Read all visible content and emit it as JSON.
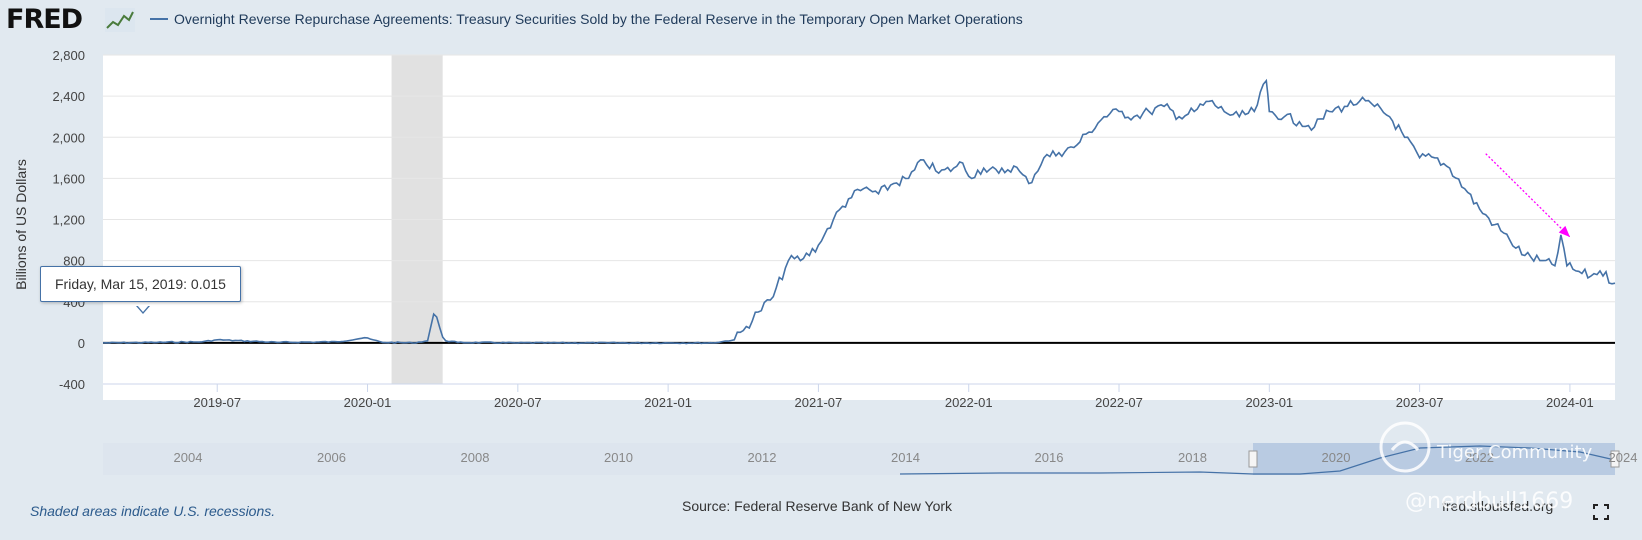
{
  "header": {
    "logo_text": "FRED",
    "series_title": "Overnight Reverse Repurchase Agreements: Treasury Securities Sold by the Federal Reserve in the Temporary Open Market Operations"
  },
  "tooltip": {
    "date_label": "Friday, Mar 15, 2019:",
    "value": "0.015"
  },
  "footer": {
    "recession_note": "Shaded areas indicate U.S. recessions.",
    "source": "Source: Federal Reserve Bank of New York",
    "url": "fred.stlouisfed.org"
  },
  "watermark": {
    "brand": "Tiger Community",
    "handle": "@nerdbull1669"
  },
  "colors": {
    "series": "#4572a7",
    "recession": "#e1e1e1",
    "arrow": "#ff00ff",
    "zero_line": "#000000",
    "navigator_range": "#b0c4de"
  },
  "chart_data": {
    "type": "line",
    "title": "Overnight Reverse Repurchase Agreements: Treasury Securities Sold by the Federal Reserve in the Temporary Open Market Operations",
    "ylabel": "Billions of US Dollars",
    "xlabel": "",
    "ylim": [
      -400,
      2800
    ],
    "yticks": [
      -400,
      0,
      400,
      800,
      1200,
      1600,
      2000,
      2400,
      2800
    ],
    "ytick_labels": [
      "-400",
      "0",
      "400",
      "800",
      "1,200",
      "1,600",
      "2,000",
      "2,400",
      "2,800"
    ],
    "xlim": [
      2019.12,
      2024.15
    ],
    "xticks": [
      2019.5,
      2020.0,
      2020.5,
      2021.0,
      2021.5,
      2022.0,
      2022.5,
      2023.0,
      2023.5,
      2024.0
    ],
    "xtick_labels": [
      "2019-07",
      "2020-01",
      "2020-07",
      "2021-01",
      "2021-07",
      "2022-01",
      "2022-07",
      "2023-01",
      "2023-07",
      "2024-01"
    ],
    "recession": [
      2020.08,
      2020.25
    ],
    "series": [
      {
        "name": "Overnight Reverse Repurchase Agreements",
        "x": [
          2019.12,
          2019.3,
          2019.45,
          2019.5,
          2019.7,
          2019.9,
          2019.99,
          2020.05,
          2020.15,
          2020.2,
          2020.22,
          2020.24,
          2020.26,
          2020.3,
          2020.5,
          2020.8,
          2021.0,
          2021.15,
          2021.22,
          2021.25,
          2021.3,
          2021.35,
          2021.4,
          2021.45,
          2021.5,
          2021.52,
          2021.55,
          2021.6,
          2021.65,
          2021.7,
          2021.75,
          2021.8,
          2021.85,
          2021.9,
          2021.95,
          2021.98,
          2022.0,
          2022.05,
          2022.1,
          2022.15,
          2022.2,
          2022.25,
          2022.3,
          2022.35,
          2022.4,
          2022.45,
          2022.5,
          2022.55,
          2022.6,
          2022.65,
          2022.7,
          2022.75,
          2022.8,
          2022.85,
          2022.9,
          2022.95,
          2022.99,
          2023.0,
          2023.05,
          2023.1,
          2023.15,
          2023.2,
          2023.25,
          2023.3,
          2023.35,
          2023.4,
          2023.45,
          2023.5,
          2023.55,
          2023.6,
          2023.65,
          2023.7,
          2023.75,
          2023.8,
          2023.85,
          2023.9,
          2023.95,
          2023.97,
          2023.99,
          2024.02,
          2024.07,
          2024.1,
          2024.15
        ],
        "values": [
          0,
          5,
          10,
          30,
          5,
          10,
          50,
          5,
          0,
          20,
          280,
          150,
          20,
          5,
          0,
          0,
          0,
          0,
          30,
          120,
          300,
          450,
          800,
          820,
          950,
          1050,
          1200,
          1400,
          1500,
          1450,
          1550,
          1600,
          1780,
          1650,
          1700,
          1750,
          1620,
          1700,
          1650,
          1720,
          1550,
          1800,
          1850,
          1900,
          2050,
          2200,
          2250,
          2200,
          2250,
          2300,
          2200,
          2250,
          2350,
          2250,
          2200,
          2250,
          2550,
          2250,
          2200,
          2150,
          2100,
          2250,
          2300,
          2350,
          2300,
          2200,
          2000,
          1800,
          1800,
          1700,
          1500,
          1300,
          1150,
          1000,
          850,
          800,
          750,
          1050,
          750,
          700,
          650,
          700,
          580
        ]
      }
    ],
    "navigator": {
      "labels": [
        "2004",
        "2006",
        "2008",
        "2010",
        "2012",
        "2014",
        "2016",
        "2018",
        "2020",
        "2022",
        "2024"
      ],
      "range_start": "2019",
      "range_end": "2024"
    },
    "annotation": {
      "type": "arrow",
      "from": [
        2023.72,
        1840
      ],
      "to": [
        2024.0,
        1030
      ]
    }
  }
}
